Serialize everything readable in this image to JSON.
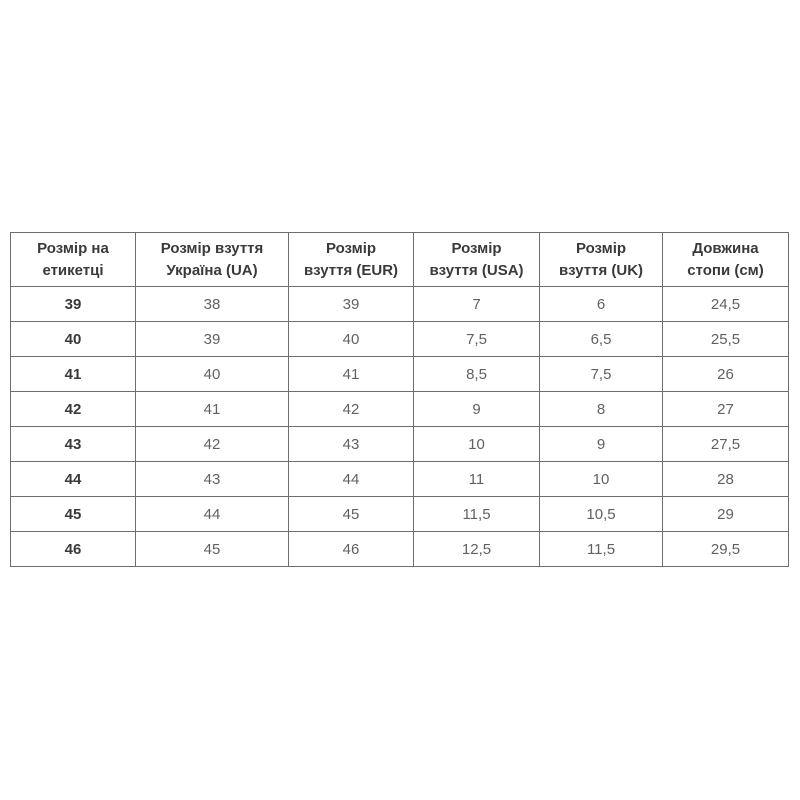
{
  "page": {
    "background_color": "#ffffff"
  },
  "table": {
    "name": "shoe-size-conversion-table",
    "border_color": "#6e6e6e",
    "header_text_color": "#3a3a3a",
    "body_text_color": "#616161",
    "headers": [
      "Розмір на\nетикетці",
      "Розмір взуття\nУкраїна (UA)",
      "Розмір\nвзуття (EUR)",
      "Розмір\nвзуття (USA)",
      "Розмір\nвзуття (UK)",
      "Довжина\nстопи (см)"
    ],
    "rows": [
      [
        "39",
        "38",
        "39",
        "7",
        "6",
        "24,5"
      ],
      [
        "40",
        "39",
        "40",
        "7,5",
        "6,5",
        "25,5"
      ],
      [
        "41",
        "40",
        "41",
        "8,5",
        "7,5",
        "26"
      ],
      [
        "42",
        "41",
        "42",
        "9",
        "8",
        "27"
      ],
      [
        "43",
        "42",
        "43",
        "10",
        "9",
        "27,5"
      ],
      [
        "44",
        "43",
        "44",
        "11",
        "10",
        "28"
      ],
      [
        "45",
        "44",
        "45",
        "11,5",
        "10,5",
        "29"
      ],
      [
        "46",
        "45",
        "46",
        "12,5",
        "11,5",
        "29,5"
      ]
    ]
  }
}
